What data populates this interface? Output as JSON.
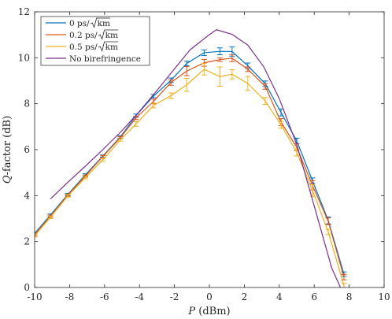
{
  "chart_data": {
    "type": "line",
    "xlabel_var": "P",
    "xlabel_unit": "(dBm)",
    "ylabel_var": "Q",
    "ylabel_rest": "-factor (dB)",
    "xlim": [
      -10,
      10
    ],
    "ylim": [
      0,
      12
    ],
    "xticks": [
      -10,
      -8,
      -6,
      -4,
      -2,
      0,
      2,
      4,
      6,
      8,
      10
    ],
    "yticks": [
      0,
      2,
      4,
      6,
      8,
      10,
      12
    ],
    "grid": false,
    "legend_position": "top-left",
    "series": [
      {
        "name": "0 ps/√km",
        "legend_prefix": "0 ps/",
        "color": "#0072BD",
        "x": [
          -10,
          -9.1,
          -8.1,
          -7.1,
          -6.1,
          -5.1,
          -4.2,
          -3.2,
          -2.2,
          -1.3,
          -0.3,
          0.6,
          1.3,
          2.2,
          3.2,
          4.1,
          5.0,
          5.9,
          6.8,
          7.7
        ],
        "y": [
          2.35,
          3.15,
          4.05,
          4.9,
          5.72,
          6.55,
          7.48,
          8.33,
          9.02,
          9.75,
          10.22,
          10.28,
          10.27,
          9.65,
          8.87,
          7.62,
          6.38,
          4.65,
          2.92,
          0.58
        ],
        "err": [
          0.05,
          0.05,
          0.05,
          0.05,
          0.05,
          0.05,
          0.07,
          0.07,
          0.1,
          0.1,
          0.12,
          0.15,
          0.2,
          0.12,
          0.12,
          0.15,
          0.12,
          0.12,
          0.15,
          0.1
        ]
      },
      {
        "name": "0.2 ps/√km",
        "legend_prefix": "0.2 ps/",
        "color": "#D95319",
        "x": [
          -10,
          -9.1,
          -8.1,
          -7.1,
          -6.1,
          -5.1,
          -4.2,
          -3.2,
          -2.2,
          -1.3,
          -0.3,
          0.6,
          1.3,
          2.2,
          3.2,
          4.1,
          5.0,
          5.9,
          6.8,
          7.7
        ],
        "y": [
          2.3,
          3.1,
          4.02,
          4.85,
          5.7,
          6.52,
          7.38,
          8.1,
          8.92,
          9.42,
          9.78,
          9.92,
          9.98,
          9.5,
          8.75,
          7.2,
          6.1,
          4.45,
          2.88,
          0.45
        ],
        "err": [
          0.05,
          0.05,
          0.05,
          0.05,
          0.05,
          0.05,
          0.07,
          0.1,
          0.12,
          0.2,
          0.15,
          0.08,
          0.15,
          0.1,
          0.12,
          0.15,
          0.15,
          0.2,
          0.15,
          0.12
        ]
      },
      {
        "name": "0.5 ps/√km",
        "legend_prefix": "0.5 ps/",
        "color": "#EDB120",
        "x": [
          -10,
          -9.1,
          -8.1,
          -7.1,
          -6.1,
          -5.1,
          -4.2,
          -3.2,
          -2.2,
          -1.3,
          -0.3,
          0.6,
          1.3,
          2.2,
          3.2,
          4.1,
          5.0,
          5.9,
          6.8,
          7.7
        ],
        "y": [
          2.25,
          3.05,
          3.98,
          4.78,
          5.55,
          6.42,
          7.12,
          7.92,
          8.35,
          8.82,
          9.5,
          9.18,
          9.28,
          8.88,
          8.12,
          7.08,
          5.88,
          4.22,
          2.42,
          0.08
        ],
        "err": [
          0.05,
          0.05,
          0.05,
          0.05,
          0.05,
          0.05,
          0.1,
          0.1,
          0.12,
          0.28,
          0.25,
          0.42,
          0.2,
          0.3,
          0.15,
          0.15,
          0.15,
          0.25,
          0.12,
          0.1
        ]
      },
      {
        "name": "No birefringence",
        "legend_prefix": "No birefringence",
        "color": "#7E2F8E",
        "x": [
          -9.1,
          -8.1,
          -7.1,
          -6.1,
          -5.1,
          -4.1,
          -3.1,
          -2.1,
          -1.1,
          -0.1,
          0.4,
          1.3,
          2.2,
          3.1,
          4.0,
          5.0,
          6.0,
          7.0,
          7.5
        ],
        "y": [
          3.85,
          4.58,
          5.28,
          6.0,
          6.75,
          7.58,
          8.48,
          9.42,
          10.35,
          10.95,
          11.22,
          11.02,
          10.55,
          9.62,
          8.22,
          6.22,
          3.55,
          0.85,
          0.0
        ],
        "err": []
      }
    ]
  }
}
